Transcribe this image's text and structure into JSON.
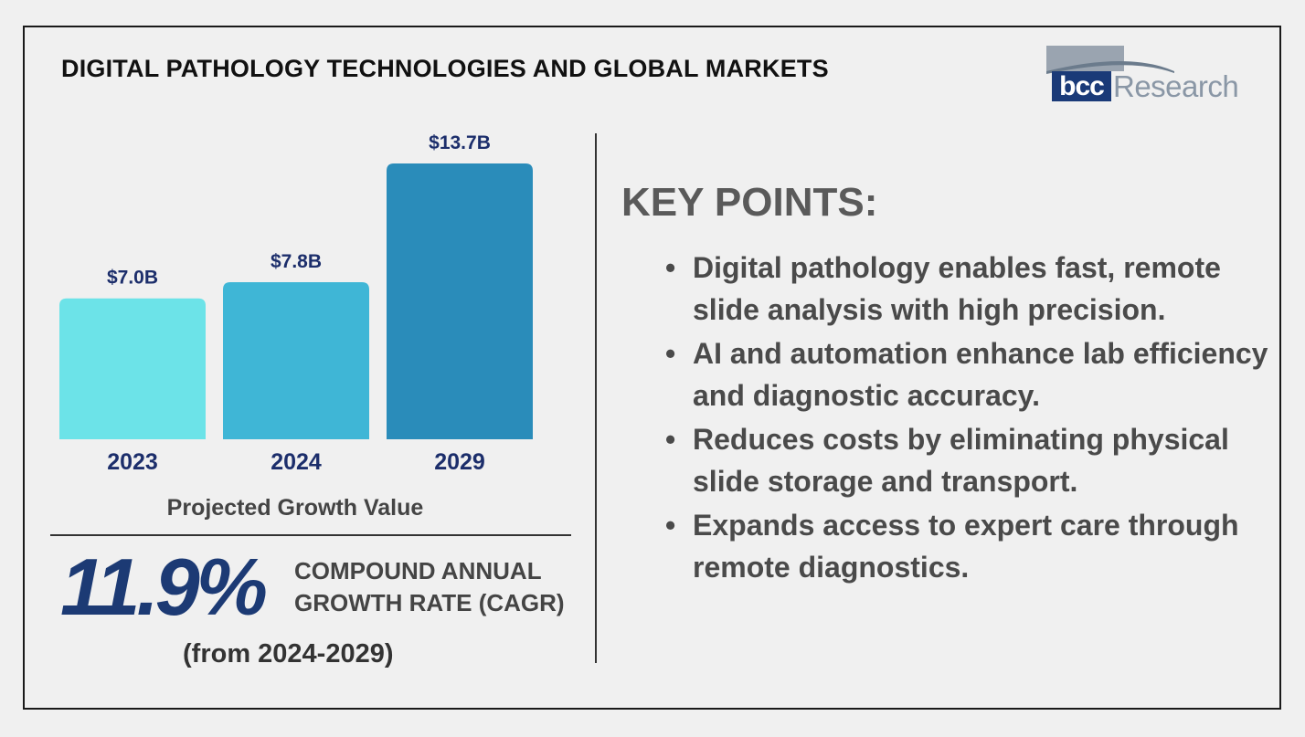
{
  "title": "DIGITAL PATHOLOGY TECHNOLOGIES AND GLOBAL MARKETS",
  "logo": {
    "bcc": "bcc",
    "research": "Research"
  },
  "chart_data": {
    "type": "bar",
    "categories": [
      "2023",
      "2024",
      "2029"
    ],
    "values": [
      7.0,
      7.8,
      13.7
    ],
    "value_labels": [
      "$7.0B",
      "$7.8B",
      "$13.7B"
    ],
    "bar_colors": [
      "#6ce3e8",
      "#3fb6d6",
      "#2a8cba"
    ],
    "title": "",
    "xlabel": "Projected Growth Value",
    "ylabel": "",
    "ylim": [
      0,
      13.7
    ]
  },
  "colors": {
    "label": "#1c2e6b",
    "cagr": "#1c3a74"
  },
  "cagr": {
    "value": "11.9%",
    "line1": "COMPOUND ANNUAL",
    "line2": "GROWTH RATE (CAGR)",
    "range": "(from 2024-2029)"
  },
  "key_points": {
    "heading": "KEY POINTS:",
    "items": [
      "Digital pathology enables fast, remote slide analysis with high precision.",
      "AI and automation enhance lab efficiency and diagnostic accuracy.",
      "Reduces costs by eliminating physical slide storage and transport.",
      "Expands access to expert care through remote diagnostics."
    ]
  }
}
